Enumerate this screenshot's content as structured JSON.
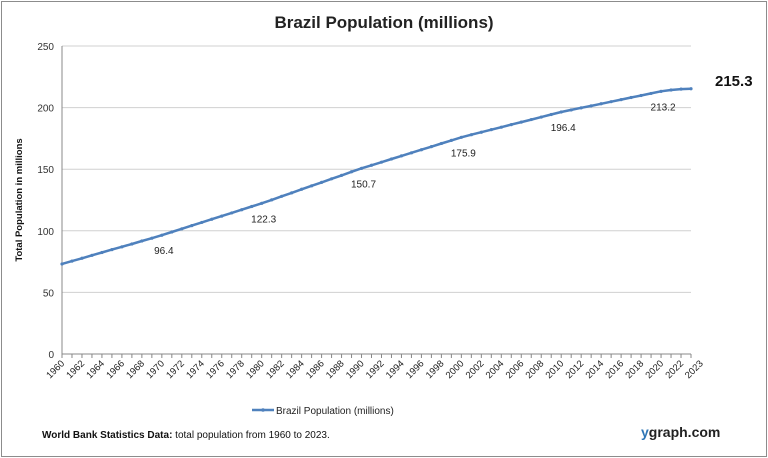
{
  "chart_data": {
    "type": "line",
    "title": "Brazil Population (millions)",
    "xlabel": "",
    "ylabel": "Total Population  in millions",
    "ylim": [
      0,
      250
    ],
    "yticks": [
      0,
      50,
      100,
      150,
      200,
      250
    ],
    "grid": true,
    "legend_position": "bottom",
    "x": [
      1960,
      1961,
      1962,
      1963,
      1964,
      1965,
      1966,
      1967,
      1968,
      1969,
      1970,
      1971,
      1972,
      1973,
      1974,
      1975,
      1976,
      1977,
      1978,
      1979,
      1980,
      1981,
      1982,
      1983,
      1984,
      1985,
      1986,
      1987,
      1988,
      1989,
      1990,
      1991,
      1992,
      1993,
      1994,
      1995,
      1996,
      1997,
      1998,
      1999,
      2000,
      2001,
      2002,
      2003,
      2004,
      2005,
      2006,
      2007,
      2008,
      2009,
      2010,
      2011,
      2012,
      2013,
      2014,
      2015,
      2016,
      2017,
      2018,
      2019,
      2020,
      2021,
      2022,
      2023
    ],
    "xtick_labels": [
      "1960",
      "1962",
      "1964",
      "1966",
      "1968",
      "1970",
      "1972",
      "1974",
      "1976",
      "1978",
      "1980",
      "1982",
      "1984",
      "1986",
      "1988",
      "1990",
      "1992",
      "1994",
      "1996",
      "1998",
      "2000",
      "2002",
      "2004",
      "2006",
      "2008",
      "2010",
      "2012",
      "2014",
      "2016",
      "2018",
      "2020",
      "2022",
      "2023"
    ],
    "series": [
      {
        "name": "Brazil Population (millions)",
        "color": "#4f81bd",
        "values": [
          73.1,
          75.4,
          77.7,
          80.1,
          82.4,
          84.7,
          87.0,
          89.3,
          91.7,
          94.0,
          96.4,
          99.0,
          101.6,
          104.2,
          106.8,
          109.4,
          111.9,
          114.5,
          117.1,
          119.7,
          122.3,
          125.1,
          128.0,
          130.8,
          133.7,
          136.5,
          139.3,
          142.2,
          145.0,
          147.9,
          150.7,
          153.2,
          155.7,
          158.3,
          160.8,
          163.3,
          165.8,
          168.3,
          170.9,
          173.4,
          175.9,
          178.0,
          180.0,
          182.1,
          184.1,
          186.2,
          188.2,
          190.3,
          192.3,
          194.4,
          196.4,
          198.1,
          199.8,
          201.4,
          203.1,
          204.8,
          206.5,
          208.2,
          209.8,
          211.5,
          213.2,
          214.3,
          215.0,
          215.3
        ]
      }
    ],
    "data_labels": [
      {
        "x": 1970,
        "text": "96.4"
      },
      {
        "x": 1980,
        "text": "122.3"
      },
      {
        "x": 1990,
        "text": "150.7"
      },
      {
        "x": 2000,
        "text": "175.9"
      },
      {
        "x": 2010,
        "text": "196.4"
      },
      {
        "x": 2020,
        "text": "213.2"
      },
      {
        "x": 2023,
        "text": "215.3",
        "emphasis": true
      }
    ]
  },
  "footer": {
    "source_bold": "World Bank  Statistics  Data:",
    "source_text": " total population from 1960 to  2023.",
    "brand_y": "y",
    "brand_rest": "graph.com"
  }
}
